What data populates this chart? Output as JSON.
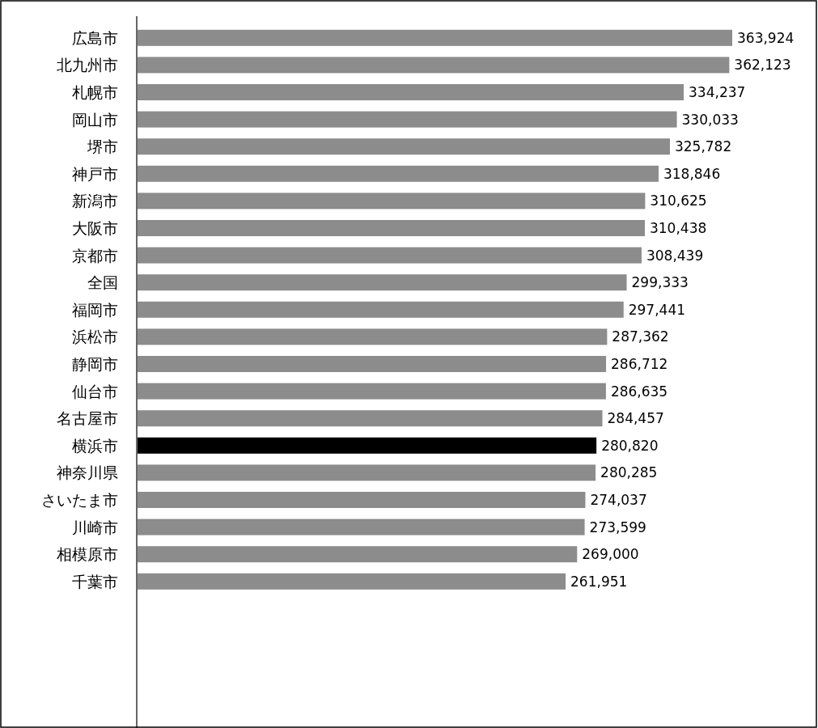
{
  "chart_data": {
    "type": "bar",
    "orientation": "horizontal",
    "categories": [
      "広島市",
      "北九州市",
      "札幌市",
      "岡山市",
      "堺市",
      "神戸市",
      "新潟市",
      "大阪市",
      "京都市",
      "全国",
      "福岡市",
      "浜松市",
      "静岡市",
      "仙台市",
      "名古屋市",
      "横浜市",
      "神奈川県",
      "さいたま市",
      "川崎市",
      "相模原市",
      "千葉市"
    ],
    "values": [
      363924,
      362123,
      334237,
      330033,
      325782,
      318846,
      310625,
      310438,
      308439,
      299333,
      297441,
      287362,
      286712,
      286635,
      284457,
      280820,
      280285,
      274037,
      273599,
      269000,
      261951
    ],
    "value_labels": [
      "363,924",
      "362,123",
      "334,237",
      "330,033",
      "325,782",
      "318,846",
      "310,625",
      "310,438",
      "308,439",
      "299,333",
      "297,441",
      "287,362",
      "286,712",
      "286,635",
      "284,457",
      "280,820",
      "280,285",
      "274,037",
      "273,599",
      "269,000",
      "261,951"
    ],
    "colors": [
      "#8c8c8c",
      "#8c8c8c",
      "#8c8c8c",
      "#8c8c8c",
      "#8c8c8c",
      "#8c8c8c",
      "#8c8c8c",
      "#8c8c8c",
      "#8c8c8c",
      "#8c8c8c",
      "#8c8c8c",
      "#8c8c8c",
      "#8c8c8c",
      "#8c8c8c",
      "#8c8c8c",
      "#000000",
      "#8c8c8c",
      "#8c8c8c",
      "#8c8c8c",
      "#8c8c8c",
      "#8c8c8c"
    ]
  }
}
